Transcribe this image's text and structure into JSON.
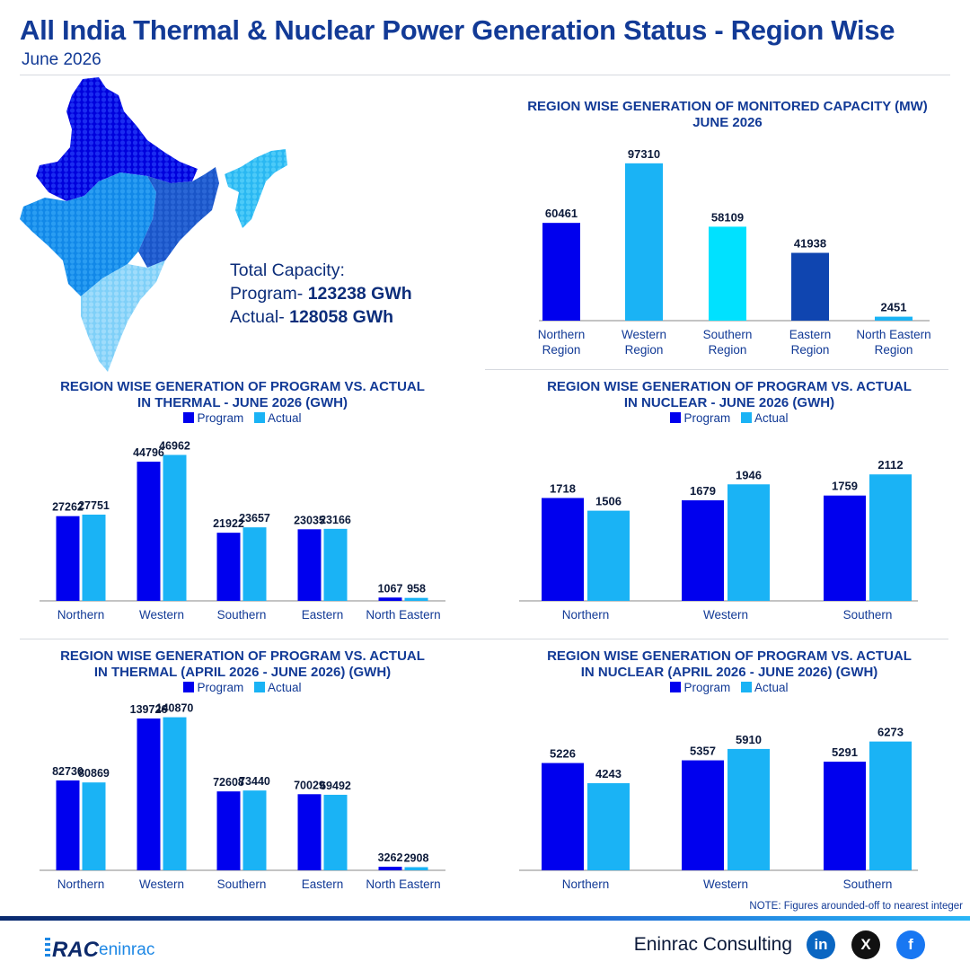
{
  "header": {
    "title": "All India Thermal & Nuclear Power Generation Status - Region Wise",
    "date": "June 2026"
  },
  "capacity": {
    "label": "Total Capacity:",
    "program_prefix": "Program- ",
    "program_value": "123238 GWh",
    "actual_prefix": "Actual- ",
    "actual_value": "128058 GWh"
  },
  "legend": {
    "program": "Program",
    "actual": "Actual"
  },
  "colors": {
    "program": "#0000ee",
    "actual": "#1ab3f5",
    "title": "#123a96",
    "cap_north": "#0000ee",
    "cap_west": "#1ab3f5",
    "cap_south": "#00e1ff",
    "cap_east": "#0f45b0",
    "cap_ne": "#1ab3f5"
  },
  "note": "NOTE: Figures arounded-off to nearest integer",
  "footer": {
    "brand": "Eninrac Consulting",
    "logo_text_1": "RAC",
    "logo_text_2": "eninrac",
    "social": [
      "in",
      "X",
      "f"
    ]
  },
  "chart_data": [
    {
      "id": "capacity",
      "type": "bar",
      "title_line1": "REGION WISE GENERATION OF MONITORED CAPACITY (MW)",
      "title_line2": "JUNE 2026",
      "categories": [
        [
          "Northern",
          "Region"
        ],
        [
          "Western",
          "Region"
        ],
        [
          "Southern",
          "Region"
        ],
        [
          "Eastern",
          "Region"
        ],
        [
          "North Eastern",
          "Region"
        ]
      ],
      "values": [
        60461,
        97310,
        58109,
        41938,
        2451
      ],
      "bar_colors": [
        "#0000ee",
        "#1ab3f5",
        "#00e1ff",
        "#0f45b0",
        "#1ab3f5"
      ],
      "ylim": [
        0,
        100000
      ]
    },
    {
      "id": "thermal_june",
      "type": "bar",
      "title_line1": "REGION WISE GENERATION OF PROGRAM VS. ACTUAL",
      "title_line2": "IN THERMAL  - JUNE 2026 (GWH)",
      "categories": [
        "Northern",
        "Western",
        "Southern",
        "Eastern",
        "North Eastern"
      ],
      "series": [
        {
          "name": "Program",
          "values": [
            27262,
            44796,
            21922,
            23035,
            1067
          ]
        },
        {
          "name": "Actual",
          "values": [
            27751,
            46962,
            23657,
            23166,
            958
          ]
        }
      ],
      "ylim": [
        0,
        50000
      ]
    },
    {
      "id": "nuclear_june",
      "type": "bar",
      "title_line1": "REGION WISE GENERATION OF PROGRAM VS. ACTUAL",
      "title_line2": "IN NUCLEAR - JUNE 2026 (GWH)",
      "categories": [
        "Northern",
        "Western",
        "Southern"
      ],
      "series": [
        {
          "name": "Program",
          "values": [
            1718,
            1679,
            1759
          ]
        },
        {
          "name": "Actual",
          "values": [
            1506,
            1946,
            2112
          ]
        }
      ],
      "ylim": [
        0,
        2400
      ]
    },
    {
      "id": "thermal_ytd",
      "type": "bar",
      "title_line1": "REGION WISE GENERATION OF PROGRAM VS. ACTUAL",
      "title_line2": "IN THERMAL (APRIL 2026 - JUNE 2026) (GWH)",
      "categories": [
        "Northern",
        "Western",
        "Southern",
        "Eastern",
        "North Eastern"
      ],
      "series": [
        {
          "name": "Program",
          "values": [
            82730,
            139726,
            72608,
            70029,
            3262
          ]
        },
        {
          "name": "Actual",
          "values": [
            80869,
            140870,
            73440,
            69492,
            2908
          ]
        }
      ],
      "ylim": [
        0,
        143000
      ]
    },
    {
      "id": "nuclear_ytd",
      "type": "bar",
      "title_line1": "REGION WISE GENERATION OF PROGRAM VS. ACTUAL",
      "title_line2": "IN NUCLEAR (APRIL 2026 - JUNE 2026) (GWH)",
      "categories": [
        "Northern",
        "Western",
        "Southern"
      ],
      "series": [
        {
          "name": "Program",
          "values": [
            5226,
            5357,
            5291
          ]
        },
        {
          "name": "Actual",
          "values": [
            4243,
            5910,
            6273
          ]
        }
      ],
      "ylim": [
        0,
        7000
      ]
    }
  ]
}
